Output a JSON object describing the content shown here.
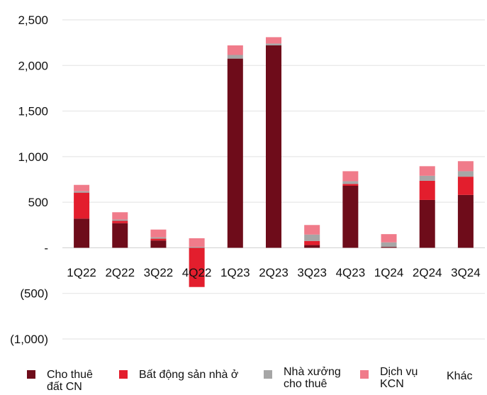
{
  "chart_data": {
    "type": "bar",
    "stacked": true,
    "categories": [
      "1Q22",
      "2Q22",
      "3Q22",
      "4Q22",
      "1Q23",
      "2Q23",
      "3Q23",
      "4Q23",
      "1Q24",
      "2Q24",
      "3Q24"
    ],
    "series": [
      {
        "name": "Cho thuê\nđất CN",
        "color": "#6e0c1a",
        "values": [
          320,
          270,
          80,
          0,
          2075,
          2220,
          30,
          680,
          10,
          525,
          580
        ]
      },
      {
        "name": "Bất động sản nhà ở",
        "color": "#e31e2d",
        "values": [
          285,
          25,
          20,
          -430,
          0,
          0,
          45,
          20,
          0,
          210,
          200
        ]
      },
      {
        "name": "Nhà xưởng\ncho thuê",
        "color": "#a6a6a6",
        "values": [
          15,
          15,
          15,
          10,
          40,
          20,
          70,
          30,
          50,
          55,
          60
        ]
      },
      {
        "name": "Dịch vụ\nKCN",
        "color": "#f07b8a",
        "values": [
          70,
          80,
          85,
          95,
          105,
          70,
          105,
          110,
          90,
          105,
          110
        ]
      },
      {
        "name": "Khác",
        "color": "#f5b8c0",
        "values": [
          0,
          0,
          0,
          0,
          0,
          0,
          0,
          0,
          0,
          0,
          0
        ]
      }
    ],
    "ylim": [
      -1000,
      2500
    ],
    "yticks": [
      -1000,
      -500,
      0,
      500,
      1000,
      1500,
      2000,
      2500
    ],
    "ytick_labels": [
      "(1,000)",
      "(500)",
      "-",
      "500",
      "1,000",
      "1,500",
      "2,000",
      "2,500"
    ],
    "grid": true,
    "legend_position": "bottom",
    "title": "",
    "xlabel": "",
    "ylabel": ""
  }
}
